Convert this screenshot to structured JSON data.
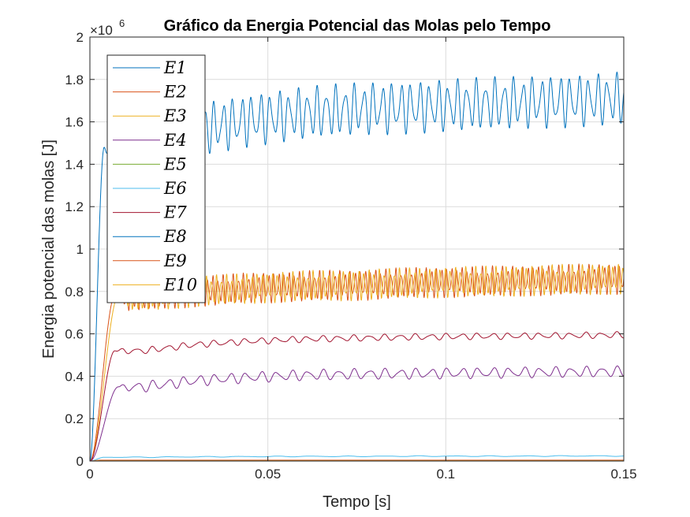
{
  "chart_data": {
    "type": "line",
    "title": "Gráfico da Energia Potencial das Molas pelo Tempo",
    "xlabel": "Tempo [s]",
    "ylabel": "Energia potencial das molas [J]",
    "xlim": [
      0,
      0.15
    ],
    "ylim": [
      0,
      2000000
    ],
    "x_ticks": [
      0,
      0.05,
      0.1,
      0.15
    ],
    "x_tick_labels": [
      "0",
      "0.05",
      "0.1",
      "0.15"
    ],
    "y_ticks": [
      0,
      0.2,
      0.4,
      0.6,
      0.8,
      1,
      1.2,
      1.4,
      1.6,
      1.8,
      2
    ],
    "y_tick_labels": [
      "0",
      "0.2",
      "0.4",
      "0.6",
      "0.8",
      "1",
      "1.2",
      "1.4",
      "1.6",
      "1.8",
      "2"
    ],
    "y_exponent_base": "×10",
    "y_exponent_power": "6",
    "grid": true,
    "legend_location": "top-left",
    "series": [
      {
        "name": "E1",
        "color": "#0072BD",
        "values": [
          0,
          1480000,
          1560000,
          1610000,
          1640000,
          1660000,
          1670000,
          1680000,
          1690000,
          1700000,
          1710000
        ]
      },
      {
        "name": "E2",
        "color": "#D95319",
        "values": [
          0,
          780000,
          800000,
          815000,
          825000,
          830000,
          840000,
          845000,
          850000,
          855000,
          860000
        ]
      },
      {
        "name": "E3",
        "color": "#EDB120",
        "values": [
          0,
          780000,
          800000,
          815000,
          825000,
          830000,
          840000,
          845000,
          850000,
          855000,
          860000
        ]
      },
      {
        "name": "E4",
        "color": "#7E2F8E",
        "values": [
          0,
          350000,
          380000,
          395000,
          405000,
          410000,
          412000,
          415000,
          418000,
          420000,
          422000
        ]
      },
      {
        "name": "E5",
        "color": "#77AC30",
        "values": [
          0,
          3000,
          3000,
          3000,
          3000,
          3000,
          3000,
          3000,
          3000,
          3000,
          3000
        ]
      },
      {
        "name": "E6",
        "color": "#4DBEEE",
        "values": [
          0,
          18000,
          20000,
          21000,
          22000,
          22000,
          23000,
          23000,
          23000,
          24000,
          24000
        ]
      },
      {
        "name": "E7",
        "color": "#A2142F",
        "values": [
          0,
          520000,
          550000,
          565000,
          575000,
          580000,
          585000,
          588000,
          590000,
          592000,
          595000
        ]
      },
      {
        "name": "E8",
        "color": "#0072BD",
        "values": [
          0,
          2000,
          2000,
          2000,
          2000,
          2000,
          2000,
          2000,
          2000,
          2000,
          2000
        ]
      },
      {
        "name": "E9",
        "color": "#D95319",
        "values": [
          0,
          4000,
          4000,
          4000,
          4000,
          4000,
          4000,
          4000,
          4000,
          4000,
          4000
        ]
      },
      {
        "name": "E10",
        "color": "#EDB120",
        "values": [
          0,
          1000,
          1000,
          1000,
          1000,
          1000,
          1000,
          1000,
          1000,
          1000,
          1000
        ]
      }
    ],
    "x": [
      0,
      0.015,
      0.03,
      0.045,
      0.06,
      0.075,
      0.09,
      0.105,
      0.12,
      0.135,
      0.15
    ]
  }
}
